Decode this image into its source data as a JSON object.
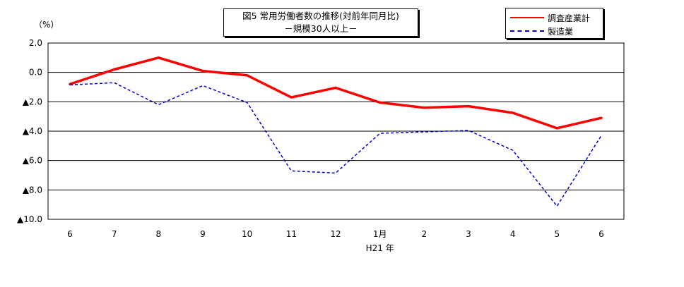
{
  "chart_data": {
    "type": "line",
    "title": "図5 常用労働者数の推移(対前年同月比)",
    "subtitle": "－規模30人以上－",
    "unit_label": "（%）",
    "x_categories": [
      "6",
      "7",
      "8",
      "9",
      "10",
      "11",
      "12",
      "1月",
      "2",
      "3",
      "4",
      "5",
      "6"
    ],
    "x_sublabel": "H21 年",
    "y_ticks": [
      {
        "value": 2,
        "label": "2.0"
      },
      {
        "value": 0,
        "label": "0.0"
      },
      {
        "value": -2,
        "label": "▲2.0"
      },
      {
        "value": -4,
        "label": "▲4.0"
      },
      {
        "value": -6,
        "label": "▲6.0"
      },
      {
        "value": -8,
        "label": "▲8.0"
      },
      {
        "value": -10,
        "label": "▲10.0"
      }
    ],
    "ylim": [
      -10,
      2
    ],
    "grid": true,
    "legend_position": "top-right",
    "series": [
      {
        "name": "調査産業計",
        "color": "#ff0000",
        "style": "solid",
        "values": [
          -0.8,
          0.2,
          1.0,
          0.1,
          -0.2,
          -1.7,
          -1.05,
          -2.05,
          -2.4,
          -2.3,
          -2.75,
          -3.8,
          -3.1
        ]
      },
      {
        "name": "製造業",
        "color": "#0000cc",
        "style": "dashed",
        "values": [
          -0.85,
          -0.7,
          -2.2,
          -0.9,
          -2.05,
          -6.7,
          -6.85,
          -4.15,
          -4.05,
          -3.95,
          -5.3,
          -9.1,
          -4.3
        ]
      }
    ]
  }
}
